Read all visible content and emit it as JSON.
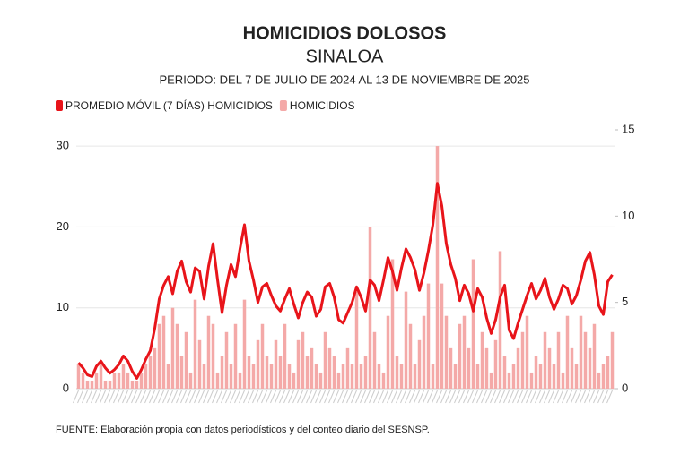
{
  "chart_data": {
    "type": "bar-line",
    "title": "HOMICIDIOS DOLOSOS",
    "subtitle": "SINALOA",
    "period": "PERIODO: DEL 7 DE JULIO DE 2024 AL 13 DE NOVIEMBRE DE 2025",
    "source": "FUENTE: Elaboración propia con datos periodísticos y del conteo diario del SESNSP.",
    "ylim": [
      0,
      32
    ],
    "yticks": [
      0,
      10,
      20,
      30
    ],
    "y2lim": [
      0,
      15
    ],
    "y2ticks": [
      0,
      5,
      10,
      15
    ],
    "grid": true,
    "legend": "top-left",
    "series": [
      {
        "name": "PROMEDIO MÓVIL (7 DÍAS) HOMICIDIOS",
        "color": "#e8141a",
        "type": "line",
        "axis": "y2",
        "values": [
          1.5,
          1.2,
          0.8,
          0.7,
          1.3,
          1.6,
          1.2,
          0.9,
          1.1,
          1.4,
          1.9,
          1.6,
          1.0,
          0.6,
          1.1,
          1.7,
          2.2,
          3.5,
          5.2,
          6.0,
          6.5,
          5.5,
          6.8,
          7.4,
          6.2,
          5.6,
          7.0,
          6.8,
          5.2,
          7.1,
          8.4,
          6.3,
          4.4,
          6.0,
          7.2,
          6.5,
          8.1,
          9.5,
          7.4,
          6.3,
          5.0,
          5.9,
          6.1,
          5.4,
          4.8,
          4.5,
          5.2,
          5.8,
          4.9,
          4.1,
          5.0,
          5.6,
          5.3,
          4.2,
          4.6,
          5.9,
          6.1,
          5.3,
          4.0,
          3.8,
          4.4,
          5.0,
          5.9,
          5.3,
          4.5,
          6.3,
          6.0,
          5.1,
          6.3,
          7.6,
          6.8,
          5.7,
          7.0,
          8.1,
          7.6,
          6.9,
          5.7,
          6.7,
          8.0,
          9.5,
          11.9,
          10.6,
          8.4,
          7.2,
          6.4,
          5.1,
          6.0,
          5.5,
          4.5,
          5.8,
          5.3,
          4.1,
          3.2,
          4.0,
          5.3,
          6.0,
          3.4,
          2.9,
          3.8,
          4.6,
          5.4,
          6.1,
          5.2,
          5.7,
          6.4,
          5.3,
          4.6,
          5.2,
          6.0,
          5.8,
          4.9,
          5.4,
          6.3,
          7.4,
          7.9,
          6.6,
          4.8,
          4.3,
          6.2,
          6.6
        ]
      },
      {
        "name": "HOMICIDIOS",
        "color": "#f4a9a8",
        "type": "bar",
        "values": [
          3,
          2,
          1,
          1,
          2,
          3,
          1,
          1,
          2,
          2,
          3,
          2,
          1,
          1,
          2,
          3,
          4,
          5,
          8,
          9,
          3,
          10,
          8,
          4,
          7,
          2,
          11,
          6,
          3,
          9,
          8,
          2,
          4,
          7,
          3,
          8,
          2,
          11,
          4,
          3,
          6,
          8,
          4,
          3,
          6,
          4,
          8,
          3,
          2,
          6,
          7,
          4,
          5,
          3,
          2,
          7,
          5,
          4,
          2,
          3,
          5,
          3,
          12,
          3,
          4,
          20,
          7,
          3,
          2,
          9,
          16,
          4,
          3,
          12,
          8,
          3,
          6,
          9,
          13,
          3,
          30,
          13,
          9,
          5,
          3,
          8,
          9,
          5,
          16,
          3,
          7,
          5,
          2,
          6,
          17,
          4,
          2,
          3,
          5,
          7,
          9,
          2,
          4,
          3,
          7,
          5,
          3,
          7,
          2,
          9,
          5,
          3,
          9,
          7,
          5,
          8,
          2,
          3,
          4,
          7
        ]
      }
    ]
  }
}
